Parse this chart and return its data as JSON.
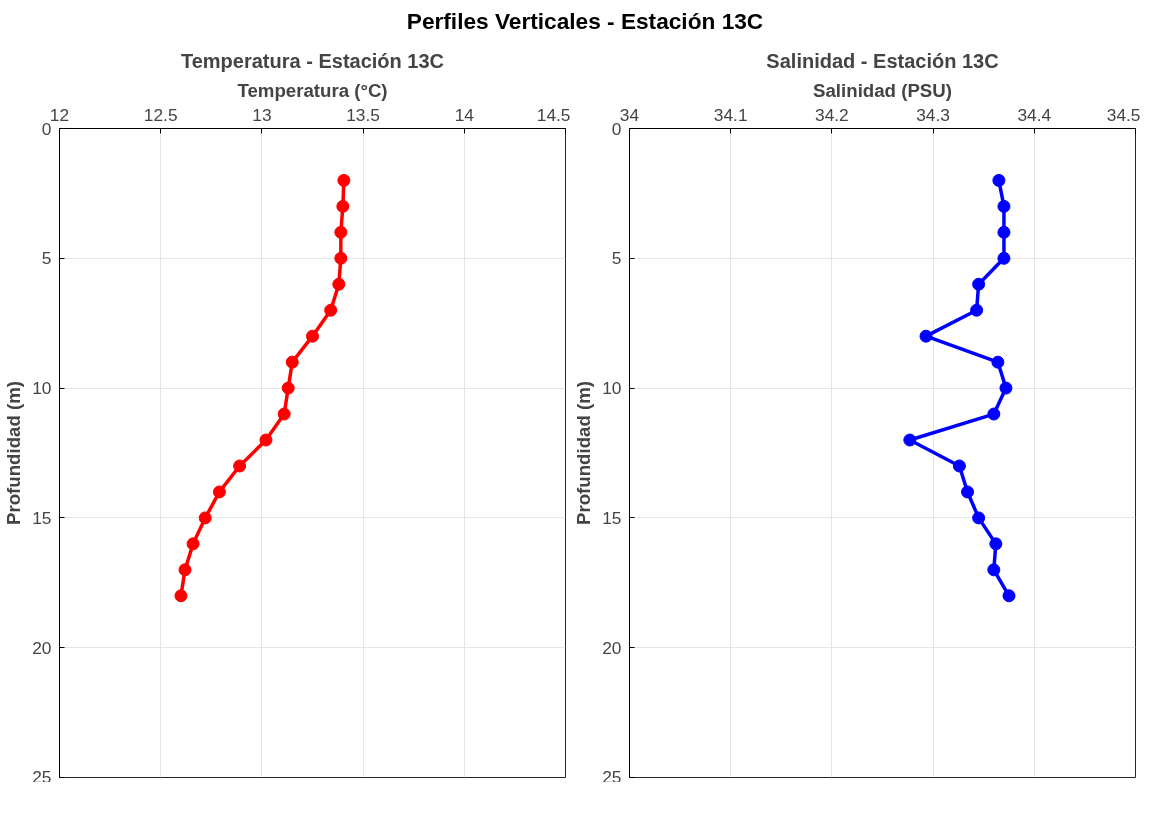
{
  "chart_data": [
    {
      "type": "line",
      "title": "Temperatura - Estación 13C",
      "xlabel": "Temperatura (°C)",
      "ylabel": "Profundidad (m)",
      "annotations": [
        "Perfiles Verticales - Estación 13C"
      ],
      "x": [
        13.405,
        13.4,
        13.39,
        13.39,
        13.38,
        13.34,
        13.25,
        13.15,
        13.13,
        13.11,
        13.02,
        12.89,
        12.79,
        12.72,
        12.66,
        12.62,
        12.6
      ],
      "series": [
        {
          "color": "#ff0000",
          "values": [
            2,
            3,
            4,
            5,
            6,
            7,
            8,
            9,
            10,
            11,
            12,
            13,
            14,
            15,
            16,
            17,
            18
          ]
        }
      ],
      "xlim": [
        12,
        14.5
      ],
      "xticks": [
        12,
        12.5,
        13,
        13.5,
        14,
        14.5
      ],
      "ylim": [
        25,
        0
      ],
      "yticks": [
        0,
        5,
        10,
        15,
        20,
        25
      ],
      "grid": true,
      "marker": "circle",
      "line_style": "solid"
    },
    {
      "type": "line",
      "title": "Salinidad - Estación 13C",
      "xlabel": "Salinidad (PSU)",
      "ylabel": "Profundidad (m)",
      "x": [
        34.365,
        34.37,
        34.37,
        34.37,
        34.345,
        34.343,
        34.293,
        34.364,
        34.372,
        34.36,
        34.277,
        34.326,
        34.334,
        34.345,
        34.362,
        34.36,
        34.375
      ],
      "series": [
        {
          "color": "#0000ff",
          "values": [
            2,
            3,
            4,
            5,
            6,
            7,
            8,
            9,
            10,
            11,
            12,
            13,
            14,
            15,
            16,
            17,
            18
          ]
        }
      ],
      "xlim": [
        34,
        34.5
      ],
      "xticks": [
        34,
        34.1,
        34.2,
        34.3,
        34.4,
        34.5
      ],
      "ylim": [
        25,
        0
      ],
      "yticks": [
        0,
        5,
        10,
        15,
        20,
        25
      ],
      "grid": true,
      "marker": "circle",
      "line_style": "solid"
    }
  ]
}
